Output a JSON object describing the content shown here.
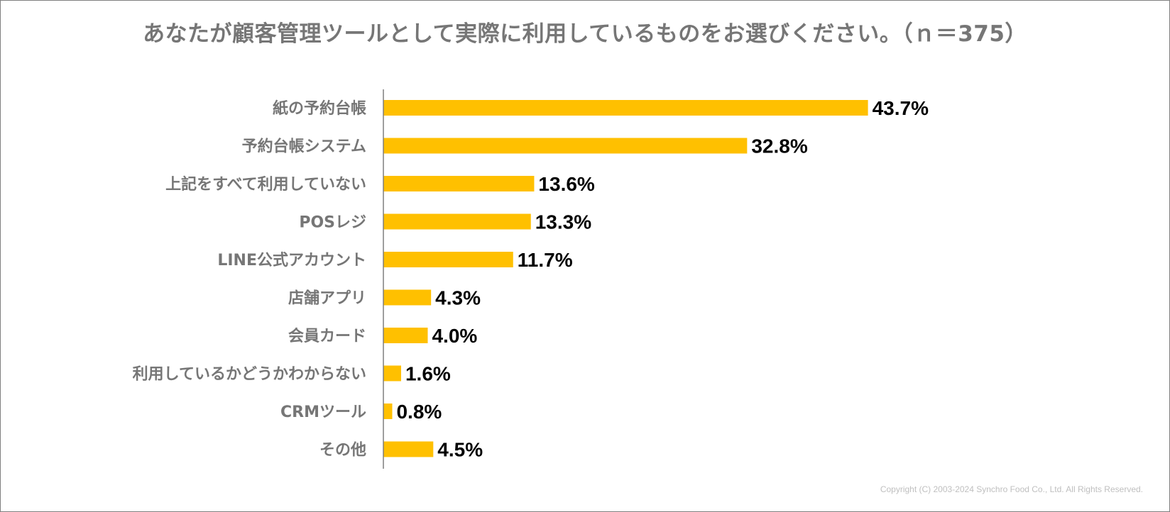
{
  "chart_data": {
    "type": "bar",
    "orientation": "horizontal",
    "title": "あなたが顧客管理ツールとして実際に利用しているものをお選びください。（ｎ＝375）",
    "categories": [
      "紙の予約台帳",
      "予約台帳システム",
      "上記をすべて利用していない",
      "POSレジ",
      "LINE公式アカウント",
      "店舗アプリ",
      "会員カード",
      "利用しているかどうかわからない",
      "CRMツール",
      "その他"
    ],
    "values": [
      43.7,
      32.8,
      13.6,
      13.3,
      11.7,
      4.3,
      4.0,
      1.6,
      0.8,
      4.5
    ],
    "value_labels": [
      "43.7%",
      "32.8%",
      "13.6%",
      "13.3%",
      "11.7%",
      "4.3%",
      "4.0%",
      "1.6%",
      "0.8%",
      "4.5%"
    ],
    "unit": "%",
    "xlim": [
      0,
      100
    ],
    "xlabel": "",
    "ylabel": "",
    "grid": false,
    "legend": "none",
    "bar_color": "#FFC000"
  },
  "footer": {
    "copyright": "Copyright (C) 2003-2024   Synchro Food Co., Ltd. All Rights Reserved."
  },
  "colors": {
    "title": "#767676",
    "category_label": "#767676",
    "value_label": "#000000",
    "axis": "#7f7f7f",
    "bar": "#FFC000"
  }
}
